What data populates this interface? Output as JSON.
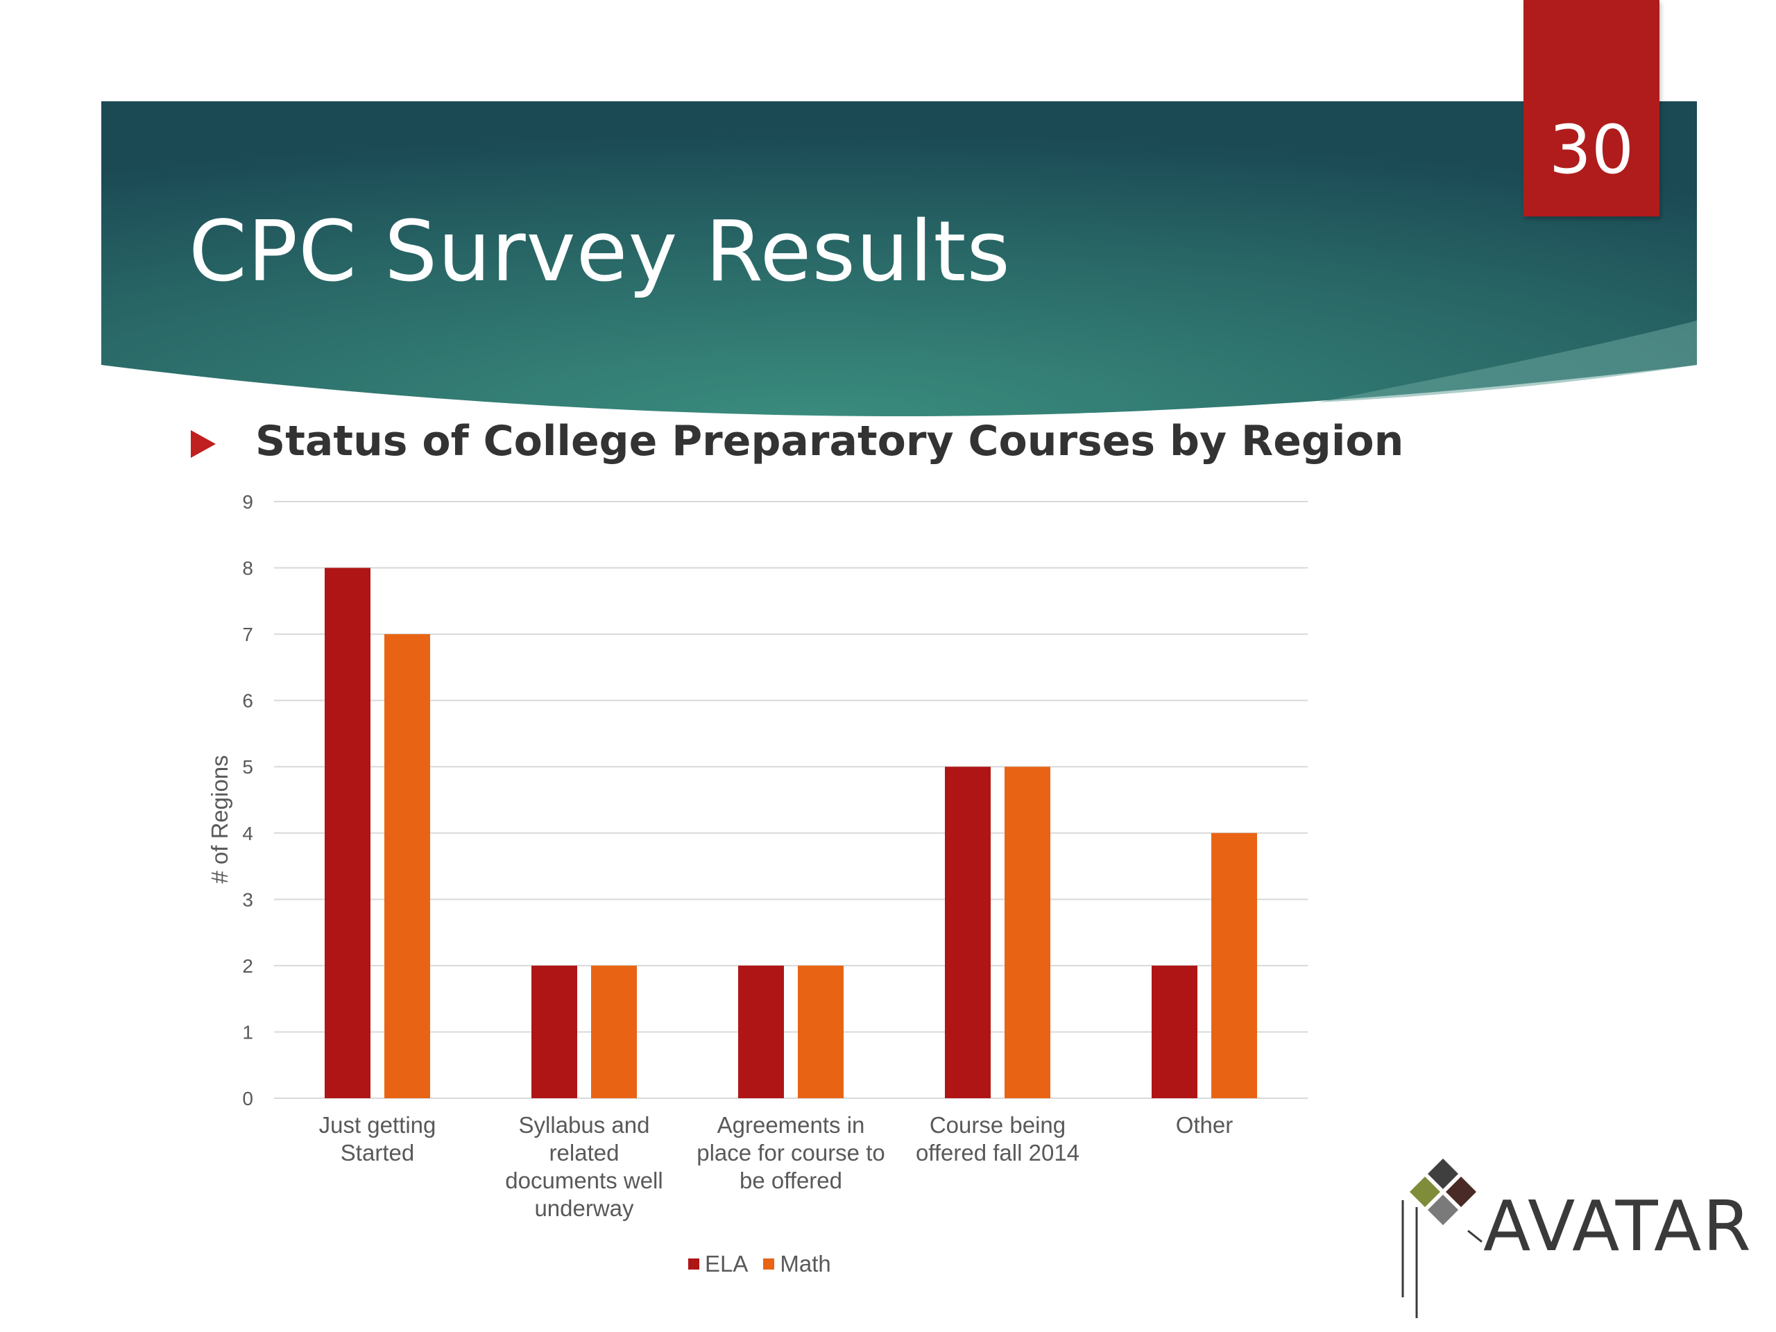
{
  "slide": {
    "page_number": "30",
    "title": "CPC Survey Results",
    "bullet": "Status of College Preparatory Courses by Region"
  },
  "logo": {
    "text": "AVATAR"
  },
  "colors": {
    "header_dark": "#1d4f57",
    "header_mid": "#2e7a72",
    "accent_red": "#b01c1c",
    "ela": "#b01515",
    "math": "#e86414"
  },
  "chart_data": {
    "type": "bar",
    "title": "",
    "xlabel": "",
    "ylabel": "# of Regions",
    "ylim": [
      0,
      9
    ],
    "yticks": [
      0,
      1,
      2,
      3,
      4,
      5,
      6,
      7,
      8,
      9
    ],
    "grid": true,
    "legend_position": "bottom",
    "categories": [
      [
        "Just getting",
        "Started"
      ],
      [
        "Syllabus and",
        "related",
        "documents well",
        "underway"
      ],
      [
        "Agreements in",
        "place for course to",
        "be offered"
      ],
      [
        "Course being",
        "offered fall 2014"
      ],
      [
        "Other"
      ]
    ],
    "series": [
      {
        "name": "ELA",
        "color": "#b01515",
        "values": [
          8,
          2,
          2,
          5,
          2
        ]
      },
      {
        "name": "Math",
        "color": "#e86414",
        "values": [
          7,
          2,
          2,
          5,
          4
        ]
      }
    ]
  }
}
